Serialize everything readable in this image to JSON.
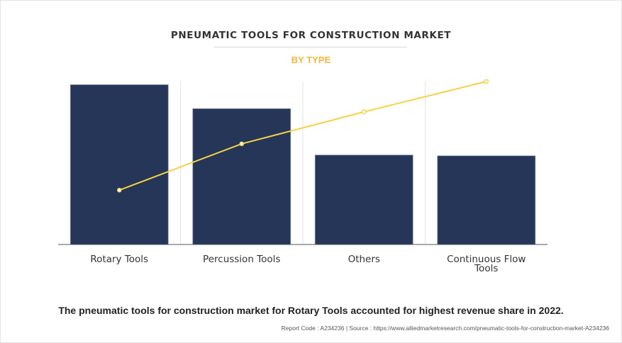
{
  "header": {
    "title": "PNEUMATIC TOOLS FOR CONSTRUCTION MARKET",
    "subtitle": "BY TYPE"
  },
  "colors": {
    "bar": "#253659",
    "bar_stroke": "#8a93a8",
    "line": "#f5d142",
    "title": "#333333",
    "subtitle": "#f2b53a"
  },
  "chart_data": {
    "type": "bar",
    "categories": [
      "Rotary Tools",
      "Percussion Tools",
      "Others",
      "Continuous Flow Tools"
    ],
    "category_label_lines": [
      [
        "Rotary Tools"
      ],
      [
        "Percussion Tools"
      ],
      [
        "Others"
      ],
      [
        "Continuous Flow",
        "Tools"
      ]
    ],
    "series": [
      {
        "kind": "bar",
        "values": [
          100,
          85,
          56,
          55.5
        ]
      },
      {
        "kind": "line",
        "values": [
          34,
          63,
          83,
          102
        ]
      }
    ],
    "ylim": [
      0,
      102
    ],
    "grid": "vertical",
    "legend": "none",
    "title": "PNEUMATIC TOOLS FOR CONSTRUCTION MARKET",
    "subtitle": "BY TYPE",
    "xlabel": "",
    "ylabel": ""
  },
  "footer": {
    "caption": "The pneumatic tools for construction market for Rotary Tools accounted for highest revenue share in 2022.",
    "source": "Report Code : A234236  |  Source : https://www.alliedmarketresearch.com/pneumatic-tools-for-construction-market-A234236"
  }
}
